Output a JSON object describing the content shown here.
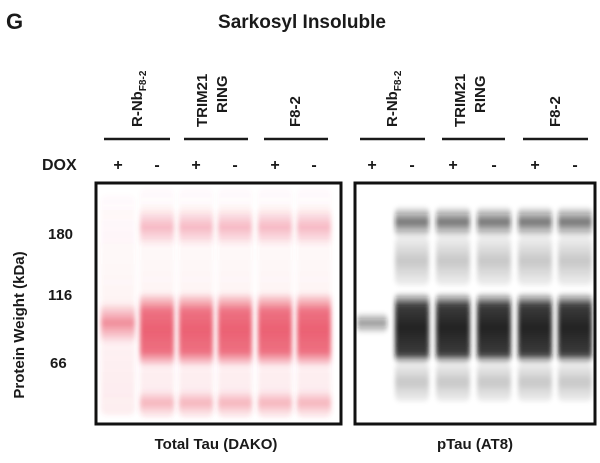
{
  "panel_letter": "G",
  "title": "Sarkosyl Insoluble",
  "y_axis_label": "Protein Weight (kDa)",
  "markers": [
    "180",
    "116",
    "66"
  ],
  "dox_label": "DOX",
  "panels": [
    {
      "caption": "Total Tau (DAKO)",
      "groups": [
        {
          "line1": "R-Nb",
          "sub": "F8-2",
          "line2": ""
        },
        {
          "line1": "TRIM21",
          "sub": "",
          "line2": "RING"
        },
        {
          "line1": "F8-2",
          "sub": "",
          "line2": ""
        }
      ],
      "dox": [
        "+",
        "-",
        "+",
        "-",
        "+",
        "-"
      ]
    },
    {
      "caption": "pTau (AT8)",
      "groups": [
        {
          "line1": "R-Nb",
          "sub": "F8-2",
          "line2": ""
        },
        {
          "line1": "TRIM21",
          "sub": "",
          "line2": "RING"
        },
        {
          "line1": "F8-2",
          "sub": "",
          "line2": ""
        }
      ],
      "dox": [
        "+",
        "-",
        "+",
        "-",
        "+",
        "-"
      ]
    }
  ],
  "colors": {
    "dako_band": "#e8475c",
    "at8_band": "#141414",
    "frame": "#111111"
  }
}
